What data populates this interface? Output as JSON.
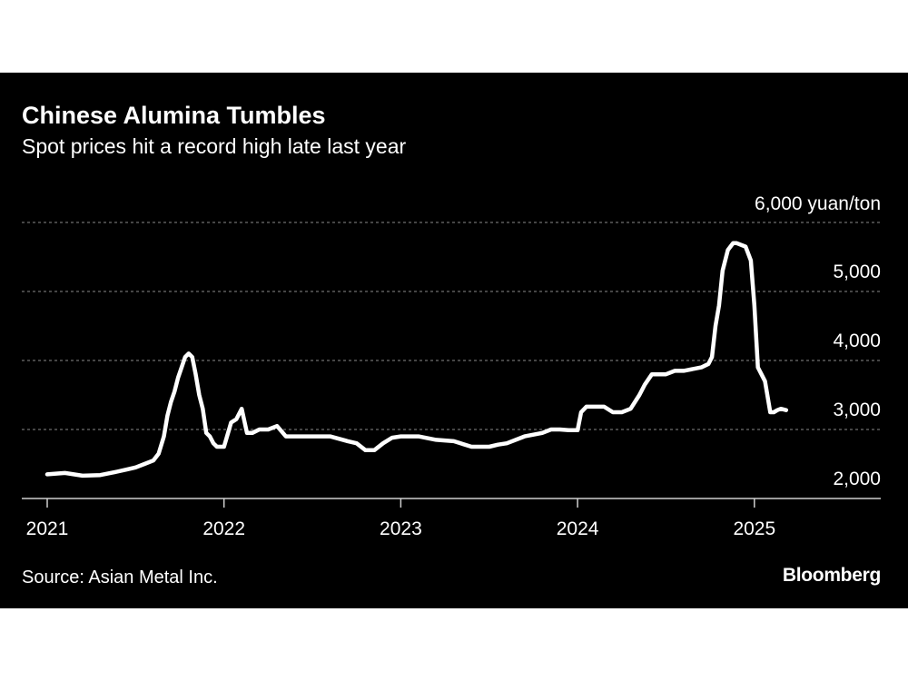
{
  "chart_data": {
    "type": "line",
    "title": "Chinese Alumina Tumbles",
    "subtitle": "Spot prices hit a record high late last year",
    "source": "Source: Asian Metal Inc.",
    "brand": "Bloomberg",
    "y_unit_label": "6,000 yuan/ton",
    "ylim": [
      2000,
      6000
    ],
    "xlim": [
      2021.0,
      2025.6
    ],
    "y_ticks": [
      {
        "value": 2000,
        "label": "2,000"
      },
      {
        "value": 3000,
        "label": "3,000"
      },
      {
        "value": 4000,
        "label": "4,000"
      },
      {
        "value": 5000,
        "label": "5,000"
      },
      {
        "value": 6000,
        "label": "6,000 yuan/ton"
      }
    ],
    "x_ticks": [
      {
        "value": 2021,
        "label": "2021"
      },
      {
        "value": 2022,
        "label": "2022"
      },
      {
        "value": 2023,
        "label": "2023"
      },
      {
        "value": 2024,
        "label": "2024"
      },
      {
        "value": 2025,
        "label": "2025"
      }
    ],
    "grid": "horizontal dotted",
    "line_color": "#ffffff",
    "series": [
      {
        "x": [
          2021.0,
          2021.05,
          2021.1,
          2021.2,
          2021.3,
          2021.38,
          2021.45,
          2021.5,
          2021.55,
          2021.6,
          2021.63,
          2021.66,
          2021.68,
          2021.7,
          2021.72,
          2021.74,
          2021.76,
          2021.78,
          2021.8,
          2021.82,
          2021.84,
          2021.86,
          2021.88,
          2021.9,
          2021.92,
          2021.94,
          2021.96,
          2022.0,
          2022.04,
          2022.07,
          2022.1,
          2022.13,
          2022.16,
          2022.2,
          2022.25,
          2022.3,
          2022.35,
          2022.4,
          2022.5,
          2022.6,
          2022.7,
          2022.75,
          2022.8,
          2022.85,
          2022.9,
          2022.95,
          2023.0,
          2023.1,
          2023.2,
          2023.3,
          2023.4,
          2023.5,
          2023.55,
          2023.6,
          2023.7,
          2023.8,
          2023.85,
          2023.9,
          2023.95,
          2024.0,
          2024.02,
          2024.05,
          2024.1,
          2024.15,
          2024.2,
          2024.25,
          2024.3,
          2024.35,
          2024.38,
          2024.42,
          2024.5,
          2024.55,
          2024.6,
          2024.7,
          2024.74,
          2024.76,
          2024.78,
          2024.8,
          2024.82,
          2024.85,
          2024.88,
          2024.9,
          2024.95,
          2024.98,
          2025.0,
          2025.02,
          2025.04,
          2025.06,
          2025.09,
          2025.11,
          2025.13,
          2025.15,
          2025.18
        ],
        "y": [
          2350,
          2360,
          2370,
          2330,
          2340,
          2380,
          2420,
          2450,
          2500,
          2550,
          2650,
          2900,
          3200,
          3400,
          3550,
          3750,
          3900,
          4050,
          4100,
          4050,
          3800,
          3500,
          3300,
          2950,
          2900,
          2800,
          2750,
          2750,
          3100,
          3150,
          3300,
          2950,
          2950,
          3000,
          3000,
          3050,
          2900,
          2900,
          2900,
          2900,
          2830,
          2800,
          2700,
          2700,
          2800,
          2880,
          2900,
          2900,
          2850,
          2830,
          2750,
          2750,
          2780,
          2800,
          2900,
          2950,
          3000,
          3000,
          2990,
          2990,
          3250,
          3330,
          3330,
          3330,
          3250,
          3250,
          3300,
          3500,
          3650,
          3800,
          3800,
          3850,
          3850,
          3900,
          3950,
          4050,
          4500,
          4800,
          5300,
          5600,
          5700,
          5700,
          5650,
          5450,
          4800,
          3900,
          3800,
          3700,
          3250,
          3250,
          3280,
          3300,
          3280
        ]
      }
    ]
  }
}
